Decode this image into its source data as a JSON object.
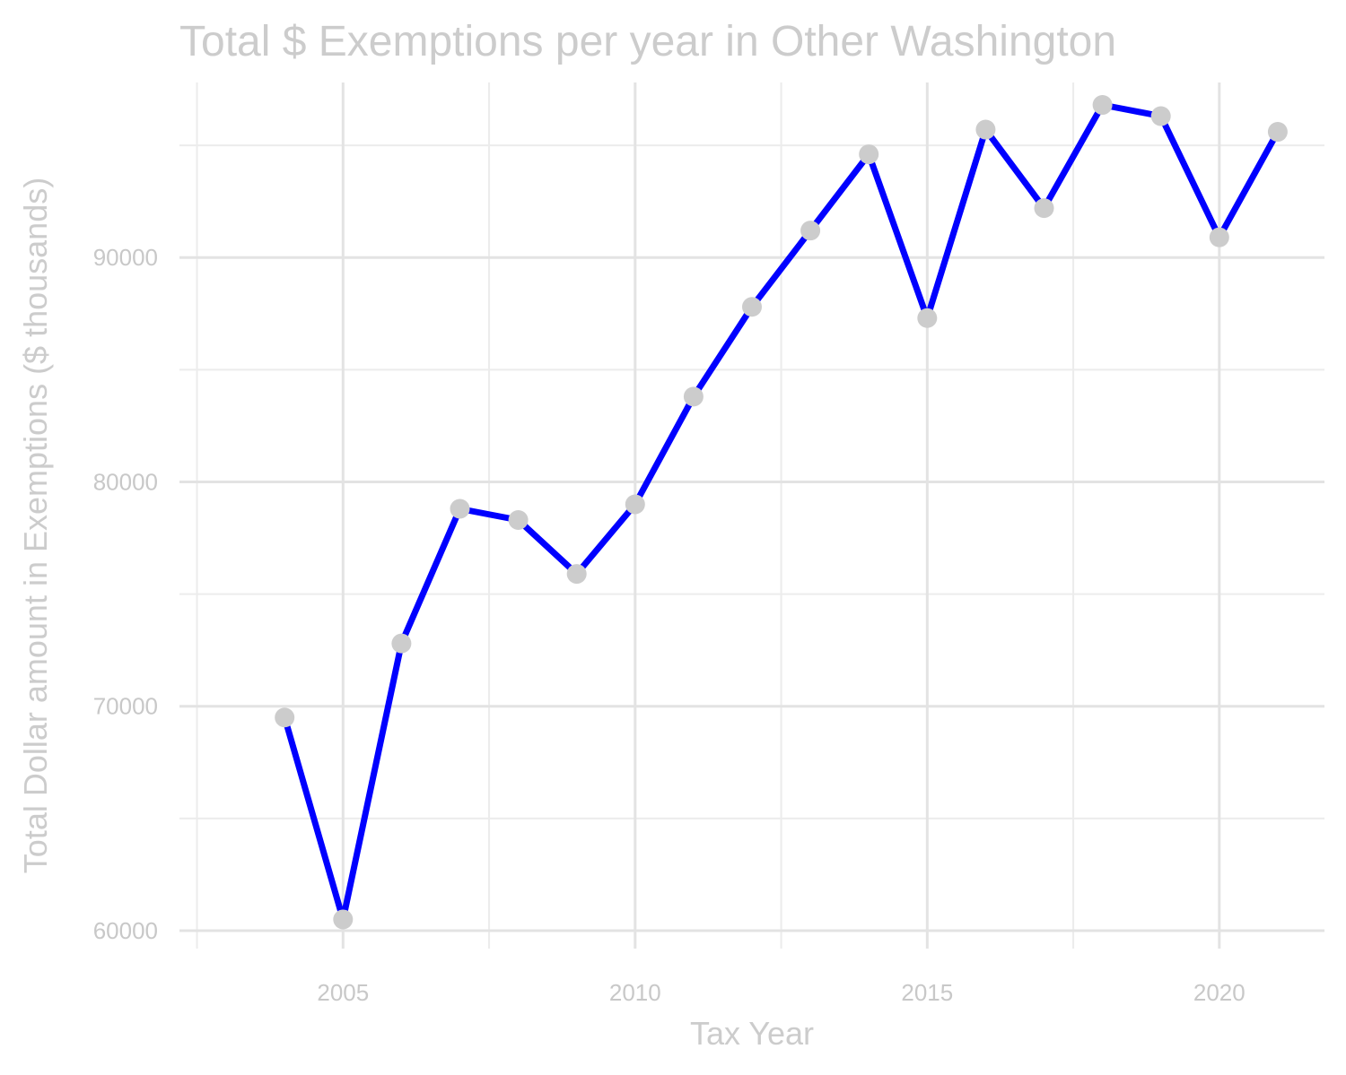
{
  "chart_data": {
    "type": "line",
    "title": "Total $ Exemptions per year in Other Washington",
    "xlabel": "Tax Year",
    "ylabel": "Total Dollar amount in Exemptions ($ thousands)",
    "x": [
      2004,
      2005,
      2006,
      2007,
      2008,
      2009,
      2010,
      2011,
      2012,
      2013,
      2014,
      2015,
      2016,
      2017,
      2018,
      2019,
      2020,
      2021
    ],
    "series": [
      {
        "values": [
          69500,
          60500,
          72800,
          78800,
          78300,
          75900,
          79000,
          83800,
          87800,
          91200,
          94600,
          87300,
          95700,
          92200,
          96800,
          96300,
          90900,
          95600
        ]
      }
    ],
    "xlim": [
      2002.2,
      2021.8
    ],
    "ylim": [
      59200,
      97800
    ],
    "x_ticks": [
      2005,
      2010,
      2015,
      2020
    ],
    "x_tick_labels": [
      "2005",
      "2010",
      "2015",
      "2020"
    ],
    "y_ticks": [
      60000,
      70000,
      80000,
      90000
    ],
    "y_tick_labels": [
      "60000",
      "70000",
      "80000",
      "90000"
    ],
    "grid": true,
    "line_color": "#0000ff",
    "point_color": "#cccccc",
    "text_color": "#cccccc"
  }
}
